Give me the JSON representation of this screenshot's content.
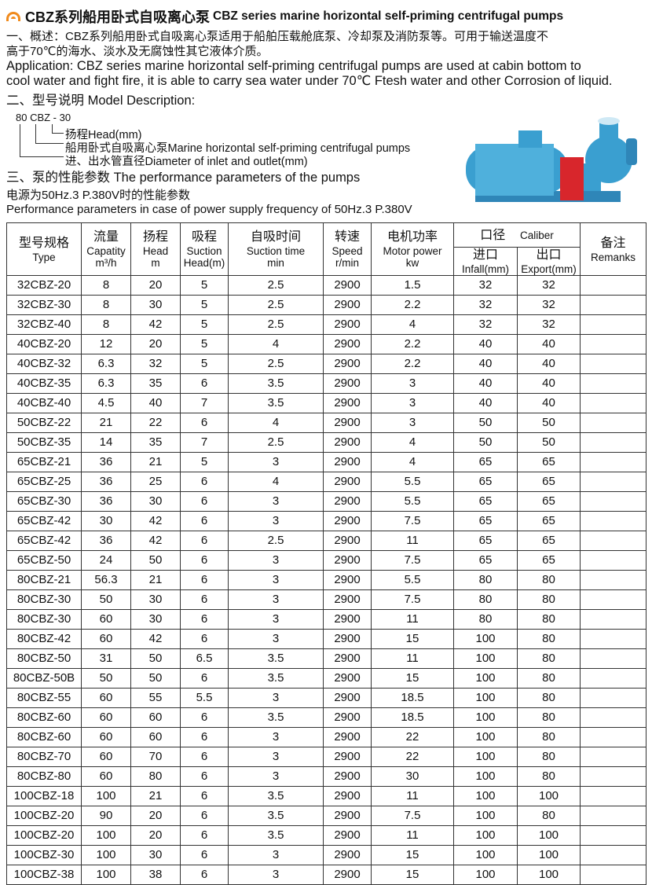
{
  "title": {
    "cn": "CBZ系列船用卧式自吸离心泵",
    "en": "CBZ series marine horizontal self-priming centrifugal pumps"
  },
  "overview": {
    "line1": "一、概述：CBZ系列船用卧式自吸离心泵适用于船舶压载舱底泵、冷却泵及消防泵等。可用于输送温度不",
    "line2": "高于70℃的海水、淡水及无腐蚀性其它液体介质。"
  },
  "application": {
    "line1": "Application:  CBZ series marine horizontal self-priming centrifugal pumps are used at cabin bottom to",
    "line2": "cool water and fight fire, it is able to carry sea water under 70℃ Ftesh water and other Corrosion of liquid."
  },
  "model_heading": "二、型号说明  Model Description:",
  "model": {
    "code": "80  CBZ - 30",
    "legend": [
      "扬程Head(mm)",
      "船用卧式自吸离心泵Marine horizontal self-priming centrifugal pumps",
      "进、出水管直径Diameter of inlet and outlet(mm)"
    ]
  },
  "perf_heading": "三、泵的性能参数  The performance parameters of the pumps",
  "power_cn": "电源为50Hz.3 P.380V时的性能参数",
  "power_en": "Performance parameters in case of power supply frequency of 50Hz.3 P.380V",
  "colors": {
    "logo": "#f08a1c",
    "pump_body": "#3a9fd0",
    "pump_guard": "#d8262c"
  },
  "table": {
    "headers": [
      {
        "cn": "型号规格",
        "en": "Type"
      },
      {
        "cn": "流量",
        "en": "Capatity",
        "en2": "m³/h"
      },
      {
        "cn": "扬程",
        "en": "Head",
        "en2": "m"
      },
      {
        "cn": "吸程",
        "en": "Suction",
        "en2": "Head(m)"
      },
      {
        "cn": "自吸时间",
        "en": "Suction time",
        "en2": "min"
      },
      {
        "cn": "转速",
        "en": "Speed",
        "en2": "r/min"
      },
      {
        "cn": "电机功率",
        "en": "Motor power",
        "en2": "kw"
      },
      {
        "cn": "口径",
        "en": "Caliber"
      },
      {
        "cn": "备注",
        "en": "Remanks"
      }
    ],
    "sub_headers": [
      {
        "cn": "进口",
        "en": "Infall(mm)"
      },
      {
        "cn": "出口",
        "en": "Export(mm)"
      }
    ],
    "rows": [
      [
        "32CBZ-20",
        "8",
        "20",
        "5",
        "2.5",
        "2900",
        "1.5",
        "32",
        "32",
        ""
      ],
      [
        "32CBZ-30",
        "8",
        "30",
        "5",
        "2.5",
        "2900",
        "2.2",
        "32",
        "32",
        ""
      ],
      [
        "32CBZ-40",
        "8",
        "42",
        "5",
        "2.5",
        "2900",
        "4",
        "32",
        "32",
        ""
      ],
      [
        "40CBZ-20",
        "12",
        "20",
        "5",
        "4",
        "2900",
        "2.2",
        "40",
        "40",
        ""
      ],
      [
        "40CBZ-32",
        "6.3",
        "32",
        "5",
        "2.5",
        "2900",
        "2.2",
        "40",
        "40",
        ""
      ],
      [
        "40CBZ-35",
        "6.3",
        "35",
        "6",
        "3.5",
        "2900",
        "3",
        "40",
        "40",
        ""
      ],
      [
        "40CBZ-40",
        "4.5",
        "40",
        "7",
        "3.5",
        "2900",
        "3",
        "40",
        "40",
        ""
      ],
      [
        "50CBZ-22",
        "21",
        "22",
        "6",
        "4",
        "2900",
        "3",
        "50",
        "50",
        ""
      ],
      [
        "50CBZ-35",
        "14",
        "35",
        "7",
        "2.5",
        "2900",
        "4",
        "50",
        "50",
        ""
      ],
      [
        "65CBZ-21",
        "36",
        "21",
        "5",
        "3",
        "2900",
        "4",
        "65",
        "65",
        ""
      ],
      [
        "65CBZ-25",
        "36",
        "25",
        "6",
        "4",
        "2900",
        "5.5",
        "65",
        "65",
        ""
      ],
      [
        "65CBZ-30",
        "36",
        "30",
        "6",
        "3",
        "2900",
        "5.5",
        "65",
        "65",
        ""
      ],
      [
        "65CBZ-42",
        "30",
        "42",
        "6",
        "3",
        "2900",
        "7.5",
        "65",
        "65",
        ""
      ],
      [
        "65CBZ-42",
        "36",
        "42",
        "6",
        "2.5",
        "2900",
        "11",
        "65",
        "65",
        ""
      ],
      [
        "65CBZ-50",
        "24",
        "50",
        "6",
        "3",
        "2900",
        "7.5",
        "65",
        "65",
        ""
      ],
      [
        "80CBZ-21",
        "56.3",
        "21",
        "6",
        "3",
        "2900",
        "5.5",
        "80",
        "80",
        ""
      ],
      [
        "80CBZ-30",
        "50",
        "30",
        "6",
        "3",
        "2900",
        "7.5",
        "80",
        "80",
        ""
      ],
      [
        "80CBZ-30",
        "60",
        "30",
        "6",
        "3",
        "2900",
        "11",
        "80",
        "80",
        ""
      ],
      [
        "80CBZ-42",
        "60",
        "42",
        "6",
        "3",
        "2900",
        "15",
        "100",
        "80",
        ""
      ],
      [
        "80CBZ-50",
        "31",
        "50",
        "6.5",
        "3.5",
        "2900",
        "11",
        "100",
        "80",
        ""
      ],
      [
        "80CBZ-50B",
        "50",
        "50",
        "6",
        "3.5",
        "2900",
        "15",
        "100",
        "80",
        ""
      ],
      [
        "80CBZ-55",
        "60",
        "55",
        "5.5",
        "3",
        "2900",
        "18.5",
        "100",
        "80",
        ""
      ],
      [
        "80CBZ-60",
        "60",
        "60",
        "6",
        "3.5",
        "2900",
        "18.5",
        "100",
        "80",
        ""
      ],
      [
        "80CBZ-60",
        "60",
        "60",
        "6",
        "3",
        "2900",
        "22",
        "100",
        "80",
        ""
      ],
      [
        "80CBZ-70",
        "60",
        "70",
        "6",
        "3",
        "2900",
        "22",
        "100",
        "80",
        ""
      ],
      [
        "80CBZ-80",
        "60",
        "80",
        "6",
        "3",
        "2900",
        "30",
        "100",
        "80",
        ""
      ],
      [
        "100CBZ-18",
        "100",
        "21",
        "6",
        "3.5",
        "2900",
        "11",
        "100",
        "100",
        ""
      ],
      [
        "100CBZ-20",
        "90",
        "20",
        "6",
        "3.5",
        "2900",
        "7.5",
        "100",
        "80",
        ""
      ],
      [
        "100CBZ-20",
        "100",
        "20",
        "6",
        "3.5",
        "2900",
        "11",
        "100",
        "100",
        ""
      ],
      [
        "100CBZ-30",
        "100",
        "30",
        "6",
        "3",
        "2900",
        "15",
        "100",
        "100",
        ""
      ],
      [
        "100CBZ-38",
        "100",
        "38",
        "6",
        "3",
        "2900",
        "15",
        "100",
        "100",
        ""
      ]
    ]
  }
}
